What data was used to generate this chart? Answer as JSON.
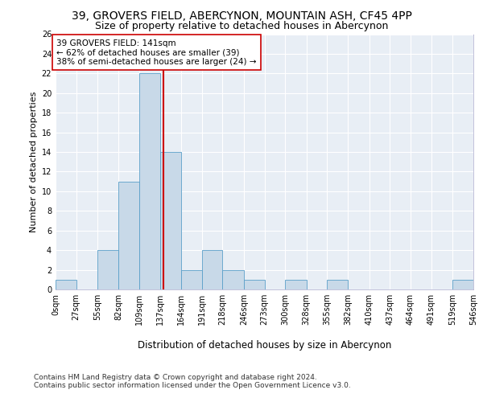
{
  "title": "39, GROVERS FIELD, ABERCYNON, MOUNTAIN ASH, CF45 4PP",
  "subtitle": "Size of property relative to detached houses in Abercynon",
  "xlabel": "Distribution of detached houses by size in Abercynon",
  "ylabel": "Number of detached properties",
  "bin_edges": [
    0,
    27,
    55,
    82,
    109,
    137,
    164,
    191,
    218,
    246,
    273,
    300,
    328,
    355,
    382,
    410,
    437,
    464,
    491,
    519,
    546
  ],
  "bin_labels": [
    "0sqm",
    "27sqm",
    "55sqm",
    "82sqm",
    "109sqm",
    "137sqm",
    "164sqm",
    "191sqm",
    "218sqm",
    "246sqm",
    "273sqm",
    "300sqm",
    "328sqm",
    "355sqm",
    "382sqm",
    "410sqm",
    "437sqm",
    "464sqm",
    "491sqm",
    "519sqm",
    "546sqm"
  ],
  "counts": [
    1,
    0,
    4,
    11,
    22,
    14,
    2,
    4,
    2,
    1,
    0,
    1,
    0,
    1,
    0,
    0,
    0,
    0,
    0,
    1
  ],
  "bar_color": "#c8d9e8",
  "bar_edge_color": "#5a9fc8",
  "property_sqm": 141,
  "vline_color": "#cc0000",
  "annotation_text": "39 GROVERS FIELD: 141sqm\n← 62% of detached houses are smaller (39)\n38% of semi-detached houses are larger (24) →",
  "annotation_box_color": "white",
  "annotation_box_edge_color": "#cc0000",
  "ylim": [
    0,
    26
  ],
  "yticks": [
    0,
    2,
    4,
    6,
    8,
    10,
    12,
    14,
    16,
    18,
    20,
    22,
    24,
    26
  ],
  "background_color": "#e8eef5",
  "grid_color": "white",
  "footer_line1": "Contains HM Land Registry data © Crown copyright and database right 2024.",
  "footer_line2": "Contains public sector information licensed under the Open Government Licence v3.0.",
  "title_fontsize": 10,
  "subtitle_fontsize": 9,
  "xlabel_fontsize": 8.5,
  "ylabel_fontsize": 8,
  "tick_fontsize": 7,
  "footer_fontsize": 6.5,
  "annotation_fontsize": 7.5
}
